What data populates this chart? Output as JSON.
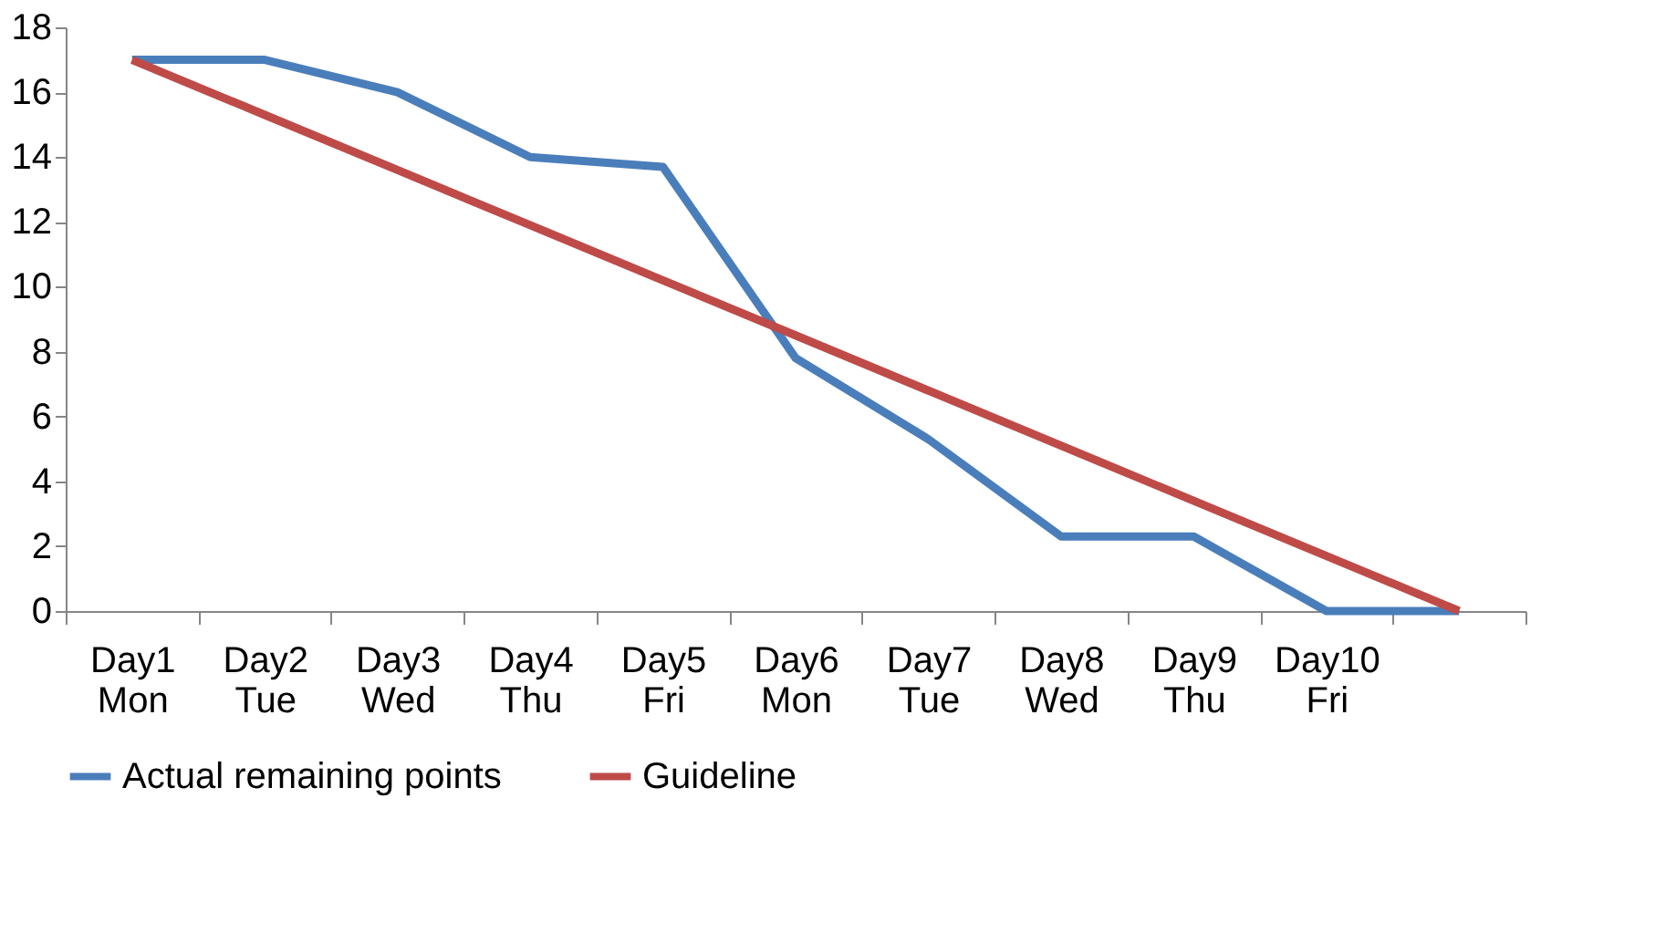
{
  "chart_data": {
    "type": "line",
    "categories": [
      "Day1\nMon",
      "Day2\nTue",
      "Day3\nWed",
      "Day4\nThu",
      "Day5\nFri",
      "Day6\nMon",
      "Day7\nTue",
      "Day8\nWed",
      "Day9\nThu",
      "Day10\nFri",
      null
    ],
    "series": [
      {
        "name": "Actual remaining points",
        "color": "#4a7ebb",
        "values": [
          17,
          17,
          16.0,
          14.0,
          13.7,
          7.8,
          5.3,
          2.3,
          2.3,
          0,
          0
        ]
      },
      {
        "name": "Guideline",
        "color": "#be4b48",
        "values": [
          17,
          15.3,
          13.6,
          11.9,
          10.2,
          8.5,
          6.8,
          5.1,
          3.4,
          1.7,
          0
        ]
      }
    ],
    "ylim": [
      0,
      18
    ],
    "yticks": [
      0,
      2,
      4,
      6,
      8,
      10,
      12,
      14,
      16,
      18
    ],
    "grid": false,
    "legend": "bottom",
    "marker": "none",
    "line_style": "solid"
  }
}
